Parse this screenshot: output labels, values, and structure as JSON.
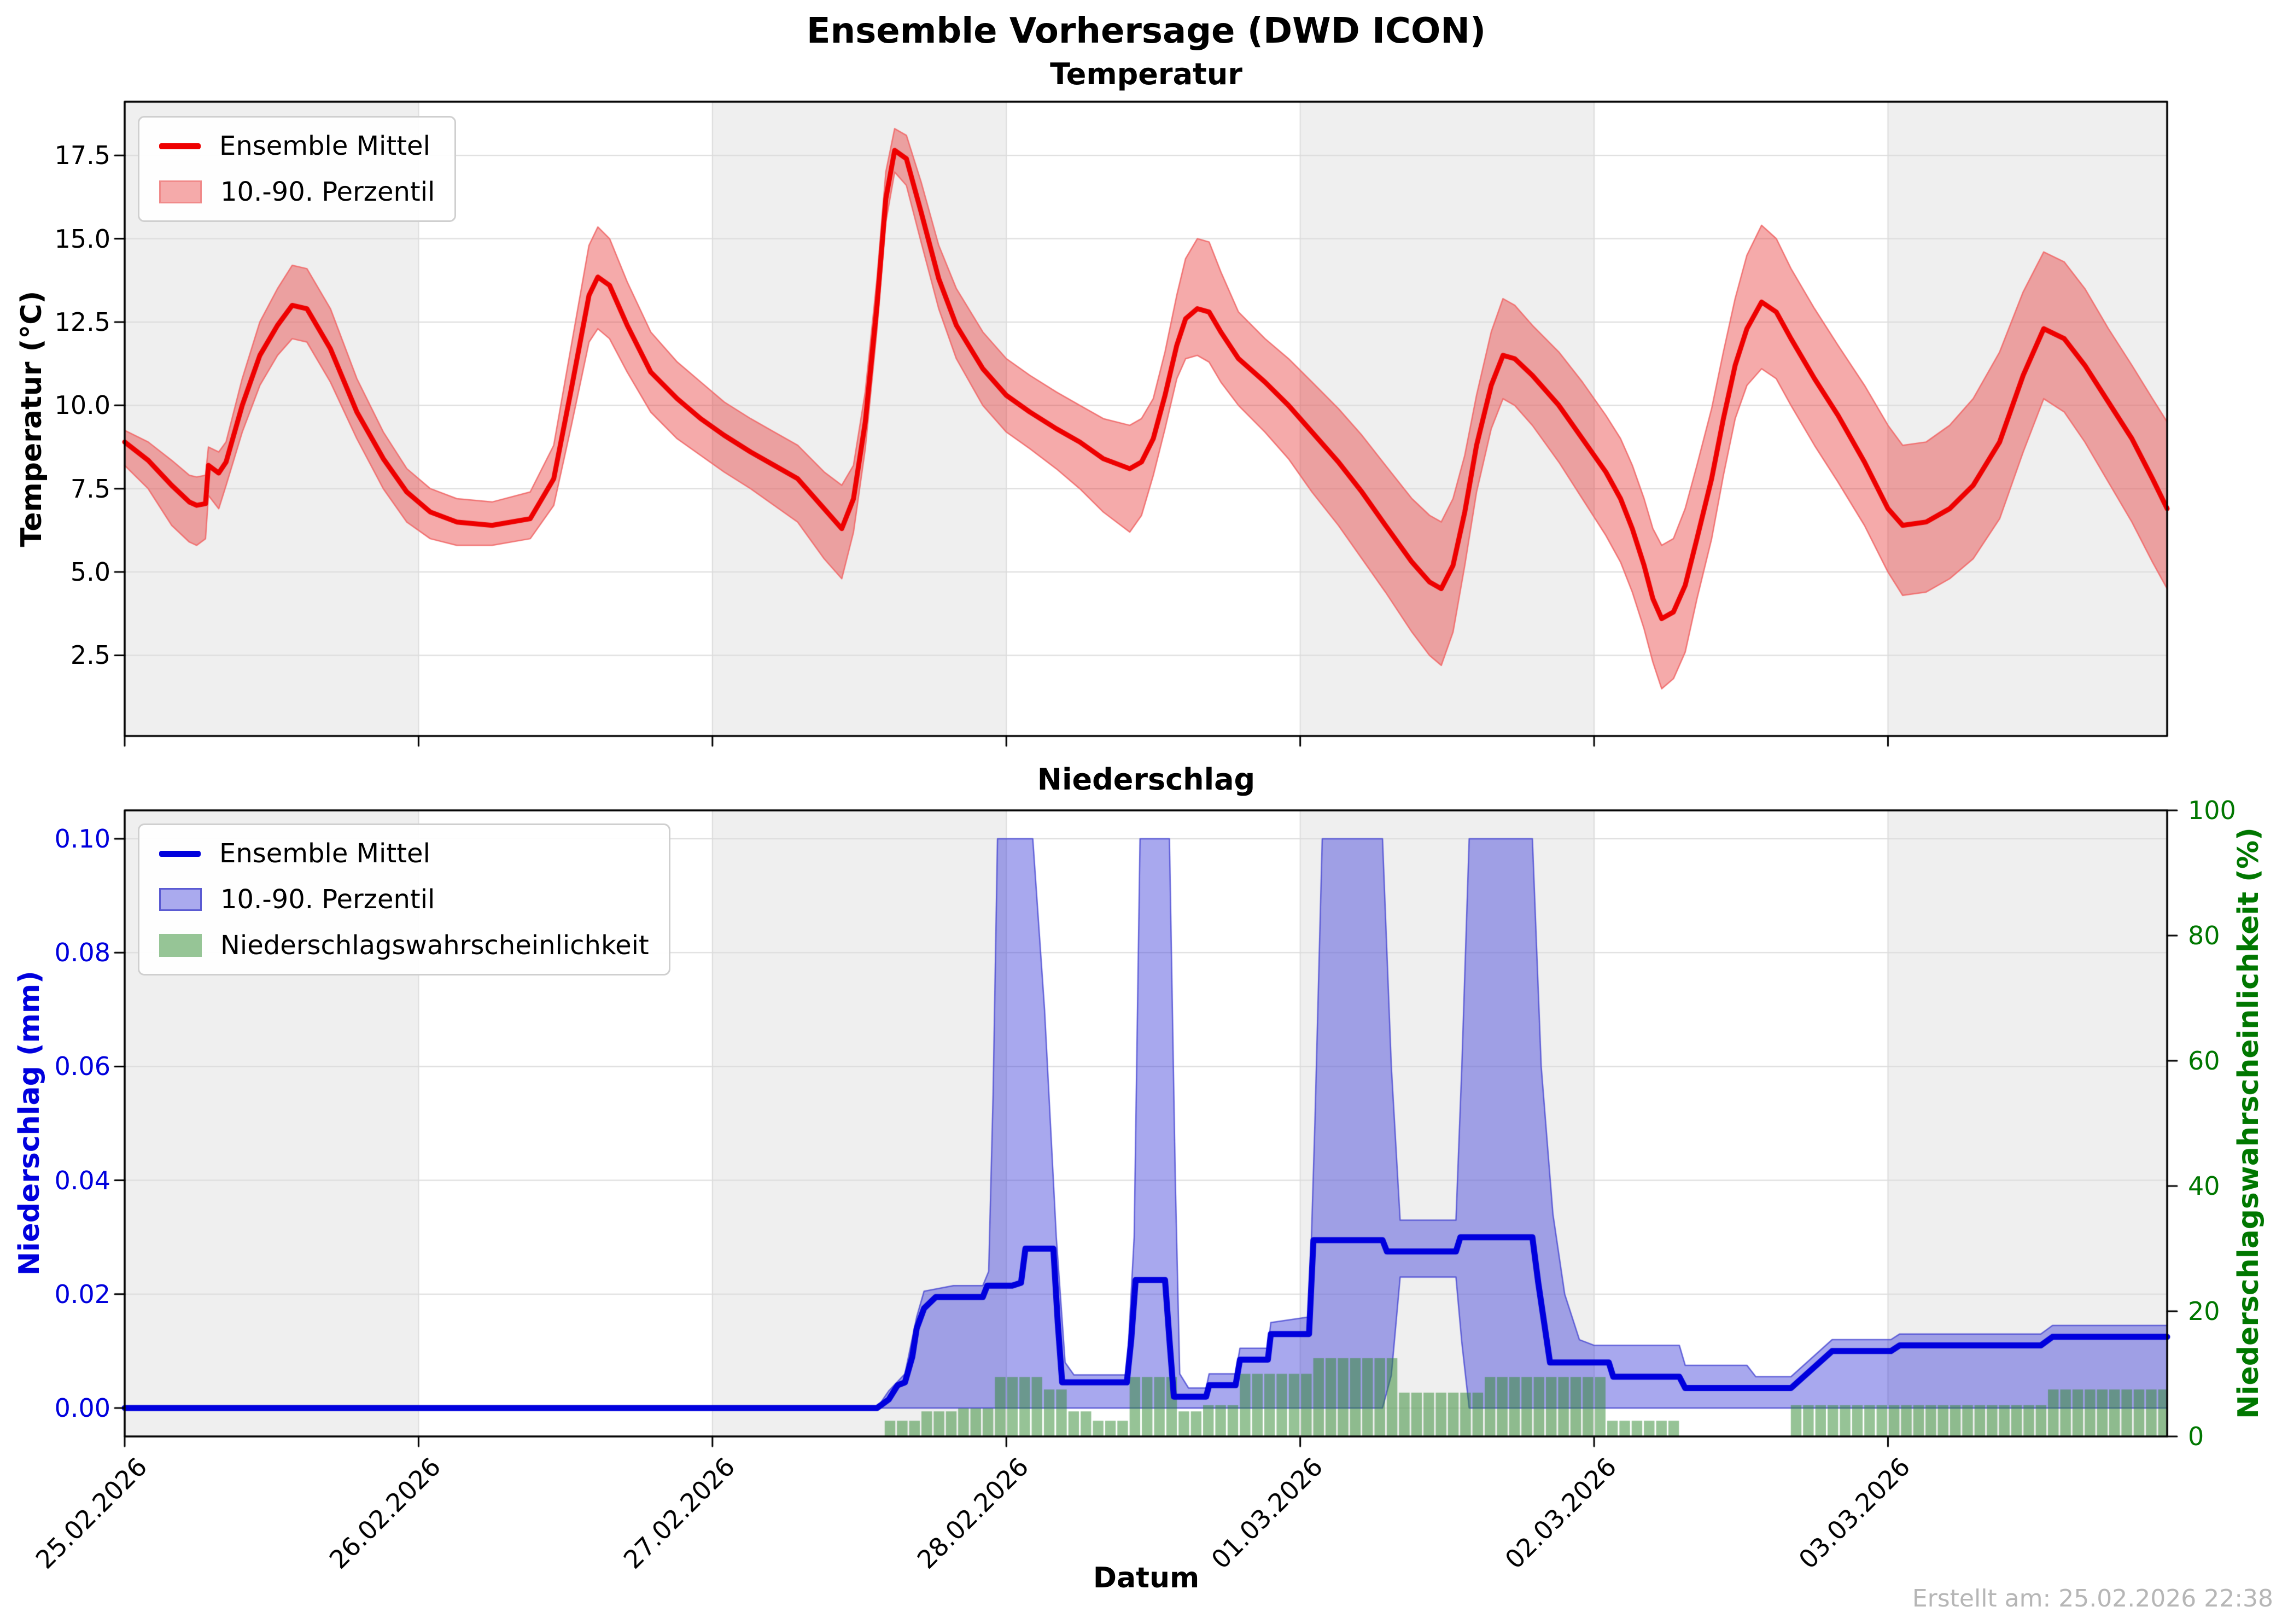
{
  "title": "Ensemble Vorhersage (DWD ICON)",
  "footer": "Erstellt am: 25.02.2026 22:38",
  "colors": {
    "temp_line": "#ee0000",
    "temp_fill": "#f5aaaa",
    "temp_fill_edge": "#f08a8a",
    "precip_line": "#0000dd",
    "precip_fill": "#abableft",
    "precip_fill_color": "#aaaaee",
    "precip_fill_edge": "#5a5ad2",
    "prob_fill": "#96c596",
    "day_band_gray": "#efefef",
    "grid": "#dcdcdc",
    "axis_left_precip": "#0000dd",
    "axis_right_precip": "#007700",
    "footer_gray": "#b6b6b6"
  },
  "temp": {
    "subtitle": "Temperatur",
    "ylabel": "Temperatur (°C)",
    "ytick_labels": [
      "2.5",
      "5.0",
      "7.5",
      "10.0",
      "12.5",
      "15.0",
      "17.5"
    ],
    "legend": [
      "Ensemble Mittel",
      "10.-90. Perzentil"
    ]
  },
  "precip": {
    "subtitle": "Niederschlag",
    "ylabel_left": "Niederschlag (mm)",
    "ylabel_right": "Niederschlagswahrscheinlichkeit (%)",
    "xlabel": "Datum",
    "ytick_left_labels": [
      "0.00",
      "0.02",
      "0.04",
      "0.06",
      "0.08",
      "0.10"
    ],
    "ytick_right_labels": [
      "0",
      "20",
      "40",
      "60",
      "80",
      "100"
    ],
    "xtick_labels": [
      "25.02.2026",
      "26.02.2026",
      "27.02.2026",
      "28.02.2026",
      "01.03.2026",
      "02.03.2026",
      "03.03.2026"
    ],
    "legend": [
      "Ensemble Mittel",
      "10.-90. Perzentil",
      "Niederschlagswahrscheinlichkeit"
    ]
  },
  "chart_data": [
    {
      "type": "line",
      "title": "Temperatur",
      "x_unit": "days since 25.02.2026 00:00",
      "xlim": [
        0,
        6.95
      ],
      "ylim": [
        0.08,
        19.11
      ],
      "yticks": [
        2.5,
        5,
        7.5,
        10,
        12.5,
        15,
        17.5
      ],
      "xticks_days": [
        0,
        1,
        2,
        3,
        4,
        5,
        6
      ],
      "grid": true,
      "legend_position": "upper left",
      "x": [
        0.0,
        0.08,
        0.16,
        0.22,
        0.245,
        0.275,
        0.285,
        0.32,
        0.345,
        0.4,
        0.46,
        0.52,
        0.57,
        0.62,
        0.7,
        0.79,
        0.88,
        0.96,
        1.04,
        1.13,
        1.25,
        1.38,
        1.46,
        1.52,
        1.58,
        1.61,
        1.65,
        1.71,
        1.79,
        1.88,
        1.96,
        2.04,
        2.13,
        2.21,
        2.29,
        2.38,
        2.44,
        2.48,
        2.52,
        2.56,
        2.59,
        2.62,
        2.66,
        2.71,
        2.77,
        2.83,
        2.92,
        3.0,
        3.08,
        3.17,
        3.25,
        3.33,
        3.42,
        3.46,
        3.5,
        3.54,
        3.58,
        3.61,
        3.65,
        3.69,
        3.73,
        3.79,
        3.88,
        3.96,
        4.04,
        4.13,
        4.21,
        4.29,
        4.38,
        4.44,
        4.48,
        4.52,
        4.56,
        4.6,
        4.65,
        4.69,
        4.73,
        4.79,
        4.88,
        4.96,
        5.04,
        5.09,
        5.13,
        5.17,
        5.2,
        5.23,
        5.27,
        5.31,
        5.35,
        5.4,
        5.44,
        5.48,
        5.52,
        5.57,
        5.62,
        5.67,
        5.75,
        5.83,
        5.92,
        6.0,
        6.05,
        6.13,
        6.21,
        6.29,
        6.38,
        6.46,
        6.53,
        6.6,
        6.67,
        6.75,
        6.83,
        6.9,
        6.95
      ],
      "mean": [
        8.9,
        8.35,
        7.6,
        7.1,
        7.0,
        7.05,
        8.2,
        7.97,
        8.3,
        10.0,
        11.5,
        12.4,
        13.0,
        12.9,
        11.7,
        9.8,
        8.4,
        7.4,
        6.8,
        6.5,
        6.4,
        6.6,
        7.8,
        10.5,
        13.3,
        13.85,
        13.6,
        12.4,
        11.0,
        10.2,
        9.6,
        9.1,
        8.6,
        8.2,
        7.8,
        6.9,
        6.3,
        7.2,
        9.5,
        13.0,
        16.2,
        17.65,
        17.4,
        15.8,
        13.8,
        12.4,
        11.1,
        10.3,
        9.8,
        9.3,
        8.9,
        8.4,
        8.1,
        8.3,
        9.0,
        10.3,
        11.8,
        12.6,
        12.9,
        12.8,
        12.2,
        11.4,
        10.7,
        10.0,
        9.2,
        8.3,
        7.4,
        6.4,
        5.3,
        4.7,
        4.5,
        5.2,
        6.8,
        8.8,
        10.6,
        11.5,
        11.4,
        10.9,
        10.0,
        9.0,
        8.0,
        7.2,
        6.3,
        5.2,
        4.2,
        3.6,
        3.8,
        4.6,
        6.0,
        7.8,
        9.6,
        11.2,
        12.3,
        13.1,
        12.8,
        12.0,
        10.8,
        9.7,
        8.3,
        6.9,
        6.4,
        6.5,
        6.9,
        7.6,
        8.9,
        10.9,
        12.3,
        12.0,
        11.2,
        10.1,
        9.0,
        7.8,
        6.9
      ],
      "p10": [
        8.2,
        7.5,
        6.4,
        5.9,
        5.8,
        6.0,
        7.3,
        6.9,
        7.6,
        9.2,
        10.6,
        11.5,
        12.0,
        11.9,
        10.7,
        9.0,
        7.5,
        6.5,
        6.0,
        5.8,
        5.8,
        6.0,
        7.0,
        9.4,
        11.9,
        12.3,
        12.0,
        11.0,
        9.8,
        9.0,
        8.5,
        8.0,
        7.5,
        7.0,
        6.5,
        5.4,
        4.8,
        6.2,
        8.7,
        12.3,
        15.5,
        17.0,
        16.6,
        14.9,
        12.9,
        11.4,
        10.0,
        9.2,
        8.7,
        8.1,
        7.5,
        6.8,
        6.2,
        6.7,
        7.9,
        9.3,
        10.8,
        11.4,
        11.5,
        11.3,
        10.7,
        10.0,
        9.2,
        8.4,
        7.4,
        6.4,
        5.4,
        4.4,
        3.2,
        2.5,
        2.2,
        3.2,
        5.2,
        7.4,
        9.3,
        10.2,
        10.0,
        9.4,
        8.3,
        7.2,
        6.1,
        5.3,
        4.4,
        3.3,
        2.3,
        1.5,
        1.8,
        2.6,
        4.2,
        6.0,
        7.9,
        9.6,
        10.6,
        11.1,
        10.8,
        10.0,
        8.8,
        7.7,
        6.4,
        5.0,
        4.3,
        4.4,
        4.8,
        5.4,
        6.6,
        8.6,
        10.2,
        9.8,
        8.9,
        7.7,
        6.5,
        5.3,
        4.5
      ],
      "p90": [
        9.25,
        8.9,
        8.35,
        7.9,
        7.85,
        7.9,
        8.75,
        8.6,
        8.9,
        10.8,
        12.5,
        13.5,
        14.2,
        14.1,
        12.9,
        10.8,
        9.2,
        8.1,
        7.5,
        7.2,
        7.1,
        7.4,
        8.8,
        11.8,
        14.8,
        15.35,
        15.0,
        13.7,
        12.2,
        11.3,
        10.7,
        10.1,
        9.6,
        9.2,
        8.8,
        8.0,
        7.6,
        8.2,
        10.4,
        13.8,
        17.0,
        18.3,
        18.1,
        16.7,
        14.8,
        13.5,
        12.2,
        11.4,
        10.9,
        10.4,
        10.0,
        9.6,
        9.4,
        9.6,
        10.2,
        11.6,
        13.3,
        14.4,
        15.0,
        14.9,
        14.0,
        12.8,
        12.0,
        11.4,
        10.7,
        9.9,
        9.1,
        8.2,
        7.2,
        6.7,
        6.5,
        7.2,
        8.5,
        10.3,
        12.2,
        13.2,
        13.0,
        12.4,
        11.6,
        10.7,
        9.7,
        9.0,
        8.2,
        7.2,
        6.3,
        5.8,
        6.0,
        6.9,
        8.2,
        9.9,
        11.6,
        13.2,
        14.5,
        15.4,
        15.0,
        14.1,
        12.9,
        11.8,
        10.6,
        9.4,
        8.8,
        8.9,
        9.4,
        10.2,
        11.6,
        13.4,
        14.6,
        14.3,
        13.5,
        12.3,
        11.2,
        10.2,
        9.5
      ]
    },
    {
      "type": "line+bar",
      "title": "Niederschlag",
      "x_unit": "days since 25.02.2026 00:00",
      "xlim": [
        0,
        6.95
      ],
      "ylim_left_mm": [
        -0.005,
        0.105
      ],
      "ylim_right_pct": [
        0,
        100
      ],
      "yticks_left_mm": [
        0,
        0.02,
        0.04,
        0.06,
        0.08,
        0.1
      ],
      "yticks_right_pct": [
        0,
        20,
        40,
        60,
        80,
        100
      ],
      "grid": true,
      "legend_position": "upper left",
      "mean_mm": {
        "x": [
          0,
          2.56,
          2.6,
          2.63,
          2.655,
          2.68,
          2.695,
          2.72,
          2.76,
          2.82,
          2.92,
          2.935,
          3.02,
          3.05,
          3.065,
          3.16,
          3.175,
          3.19,
          3.41,
          3.425,
          3.44,
          3.54,
          3.555,
          3.57,
          3.68,
          3.69,
          3.78,
          3.795,
          3.89,
          3.9,
          4.03,
          4.045,
          4.28,
          4.295,
          4.53,
          4.545,
          4.79,
          4.81,
          4.85,
          5.05,
          5.065,
          5.29,
          5.31,
          5.67,
          5.81,
          6.01,
          6.04,
          6.52,
          6.56,
          6.95
        ],
        "y": [
          0,
          0,
          0.0015,
          0.004,
          0.0045,
          0.009,
          0.014,
          0.0175,
          0.0195,
          0.0195,
          0.0195,
          0.0215,
          0.0215,
          0.022,
          0.028,
          0.028,
          0.015,
          0.0045,
          0.0045,
          0.012,
          0.0225,
          0.0225,
          0.012,
          0.002,
          0.002,
          0.004,
          0.004,
          0.0085,
          0.0085,
          0.013,
          0.013,
          0.0295,
          0.0295,
          0.0275,
          0.0275,
          0.03,
          0.03,
          0.022,
          0.008,
          0.008,
          0.0055,
          0.0055,
          0.0035,
          0.0035,
          0.01,
          0.01,
          0.011,
          0.011,
          0.0125,
          0.0125
        ]
      },
      "p90_mm": {
        "x": [
          0,
          2.56,
          2.6,
          2.655,
          2.695,
          2.72,
          2.82,
          2.92,
          2.94,
          2.955,
          2.97,
          3.09,
          3.13,
          3.17,
          3.2,
          3.23,
          3.41,
          3.435,
          3.455,
          3.555,
          3.575,
          3.59,
          3.62,
          3.68,
          3.69,
          3.78,
          3.795,
          3.89,
          3.9,
          4.03,
          4.05,
          4.075,
          4.28,
          4.31,
          4.34,
          4.53,
          4.55,
          4.575,
          4.79,
          4.82,
          4.86,
          4.9,
          4.95,
          5.0,
          5.29,
          5.31,
          5.52,
          5.55,
          5.67,
          5.81,
          6.01,
          6.04,
          6.52,
          6.56,
          6.95
        ],
        "y": [
          0,
          0,
          0.003,
          0.006,
          0.016,
          0.0205,
          0.0215,
          0.0215,
          0.024,
          0.055,
          0.1,
          0.1,
          0.07,
          0.03,
          0.008,
          0.0058,
          0.0058,
          0.03,
          0.1,
          0.1,
          0.04,
          0.006,
          0.0035,
          0.0035,
          0.006,
          0.006,
          0.0105,
          0.0105,
          0.015,
          0.016,
          0.05,
          0.1,
          0.1,
          0.06,
          0.033,
          0.033,
          0.06,
          0.1,
          0.1,
          0.06,
          0.034,
          0.02,
          0.012,
          0.011,
          0.011,
          0.0075,
          0.0075,
          0.0055,
          0.0055,
          0.012,
          0.012,
          0.013,
          0.013,
          0.0145,
          0.0145
        ]
      },
      "p10_mm": {
        "x": [
          0,
          4.3,
          4.34,
          4.53,
          4.57,
          6.95
        ],
        "y": [
          0,
          0,
          0.023,
          0.023,
          0,
          0
        ]
      },
      "prob_segments_pct": [
        [
          2.58,
          2.71,
          2.5
        ],
        [
          2.71,
          2.83,
          4
        ],
        [
          2.83,
          2.96,
          4.5
        ],
        [
          2.96,
          3.12,
          9.5
        ],
        [
          3.12,
          3.21,
          7.5
        ],
        [
          3.21,
          3.31,
          4
        ],
        [
          3.31,
          3.42,
          2.5
        ],
        [
          3.42,
          3.58,
          9.5
        ],
        [
          3.58,
          3.66,
          4
        ],
        [
          3.66,
          3.8,
          5
        ],
        [
          3.8,
          4.05,
          10
        ],
        [
          4.05,
          4.33,
          12.5
        ],
        [
          4.33,
          4.62,
          7
        ],
        [
          4.62,
          5.04,
          9.5
        ],
        [
          5.04,
          5.29,
          2.5
        ],
        [
          5.67,
          6.55,
          5
        ],
        [
          6.55,
          6.95,
          7.5
        ]
      ]
    }
  ]
}
